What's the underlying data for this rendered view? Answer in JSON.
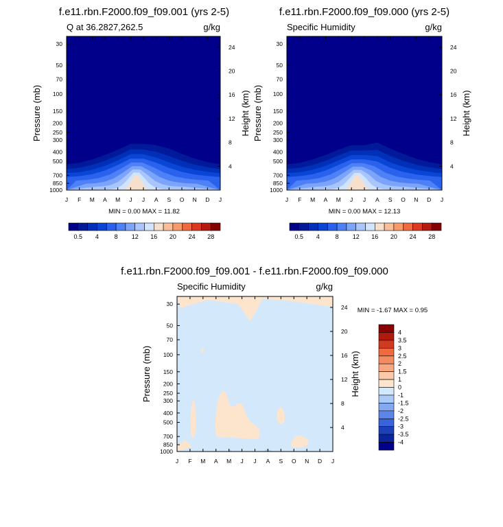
{
  "chart_data": [
    {
      "type": "contour",
      "title": "f.e11.rbn.F2000.f09_f09.001 (yrs 2-5)",
      "left_label": "Q at 36.2827,262.5",
      "right_label": "g/kg",
      "ylabel": "Pressure (mb)",
      "ylabel_right": "Height (km)",
      "xticks": [
        "J",
        "F",
        "M",
        "A",
        "M",
        "J",
        "J",
        "A",
        "S",
        "O",
        "N",
        "D",
        "J"
      ],
      "yticks": [
        "30",
        "50",
        "70",
        "100",
        "150",
        "200",
        "250",
        "300",
        "400",
        "500",
        "700",
        "850",
        "1000"
      ],
      "ylim": [
        1000,
        25
      ],
      "yscale": "log",
      "height_ticks": [
        "4",
        "8",
        "12",
        "16",
        "20",
        "24"
      ],
      "stats": "MIN =   0.00 MAX =  11.82",
      "min": 0.0,
      "max": 11.82,
      "levels": [
        "0.5",
        "4",
        "8",
        "12",
        "16",
        "20",
        "24",
        "28"
      ],
      "lowest_contour_top_mb": [
        540,
        520,
        480,
        430,
        380,
        330,
        330,
        340,
        370,
        420,
        470,
        510,
        540
      ],
      "colormap": [
        "#00008b",
        "#001a9a",
        "#0030b8",
        "#0a46d6",
        "#2a62ee",
        "#4e80f6",
        "#7ca4fa",
        "#a8c6fd",
        "#d0e4fe",
        "#f6e0cc",
        "#f9bf9a",
        "#f79a6c",
        "#f06a40",
        "#db3a22",
        "#b51a10",
        "#850000"
      ]
    },
    {
      "type": "contour",
      "title": "f.e11.rbn.F2000.f09_f09.000 (yrs 2-5)",
      "left_label": "Specific Humidity",
      "right_label": "g/kg",
      "ylabel": "Pressure (mb)",
      "ylabel_right": "Height (km)",
      "xticks": [
        "J",
        "F",
        "M",
        "A",
        "M",
        "J",
        "J",
        "A",
        "S",
        "O",
        "N",
        "D",
        "J"
      ],
      "yticks": [
        "30",
        "50",
        "70",
        "100",
        "150",
        "200",
        "250",
        "300",
        "400",
        "500",
        "700",
        "850",
        "1000"
      ],
      "ylim": [
        1000,
        25
      ],
      "yscale": "log",
      "height_ticks": [
        "4",
        "8",
        "12",
        "16",
        "20",
        "24"
      ],
      "stats": "MIN =   0.00 MAX =  12.13",
      "min": 0.0,
      "max": 12.13,
      "levels": [
        "0.5",
        "4",
        "8",
        "12",
        "16",
        "20",
        "24",
        "28"
      ],
      "lowest_contour_top_mb": [
        540,
        520,
        480,
        430,
        380,
        340,
        340,
        320,
        370,
        420,
        470,
        510,
        540
      ],
      "colormap": [
        "#00008b",
        "#001a9a",
        "#0030b8",
        "#0a46d6",
        "#2a62ee",
        "#4e80f6",
        "#7ca4fa",
        "#a8c6fd",
        "#d0e4fe",
        "#f6e0cc",
        "#f9bf9a",
        "#f79a6c",
        "#f06a40",
        "#db3a22",
        "#b51a10",
        "#850000"
      ]
    },
    {
      "type": "contour",
      "title": "f.e11.rbn.F2000.f09_f09.001 - f.e11.rbn.F2000.f09_f09.000",
      "left_label": "Specific Humidity",
      "right_label": "g/kg",
      "ylabel": "Pressure (mb)",
      "ylabel_right": "Height (km)",
      "xticks": [
        "J",
        "F",
        "M",
        "A",
        "M",
        "J",
        "J",
        "A",
        "S",
        "O",
        "N",
        "D",
        "J"
      ],
      "yticks": [
        "30",
        "50",
        "70",
        "100",
        "150",
        "200",
        "250",
        "300",
        "400",
        "500",
        "700",
        "850",
        "1000"
      ],
      "ylim": [
        1000,
        25
      ],
      "yscale": "log",
      "height_ticks": [
        "4",
        "8",
        "12",
        "16",
        "20",
        "24"
      ],
      "stats": "MIN =  -1.67 MAX =   0.95",
      "min": -1.67,
      "max": 0.95,
      "levels": [
        "4",
        "3.5",
        "3",
        "2.5",
        "2",
        "1.5",
        "1",
        "0",
        "-1",
        "-1.5",
        "-2",
        "-2.5",
        "-3",
        "-3.5",
        "-4"
      ],
      "colormap": [
        "#8b0000",
        "#b01a0a",
        "#d03a20",
        "#f06a40",
        "#f48a60",
        "#f8a880",
        "#fbc8a8",
        "#fde4cc",
        "#d4e8fc",
        "#aacaf8",
        "#84a8f2",
        "#5a86ea",
        "#3a64dc",
        "#1c40b8",
        "#0a249a",
        "#00008b"
      ],
      "background_color": "#d4e8fc",
      "positive_color": "#fde4cc",
      "negative_color": "#aacaf8"
    }
  ]
}
